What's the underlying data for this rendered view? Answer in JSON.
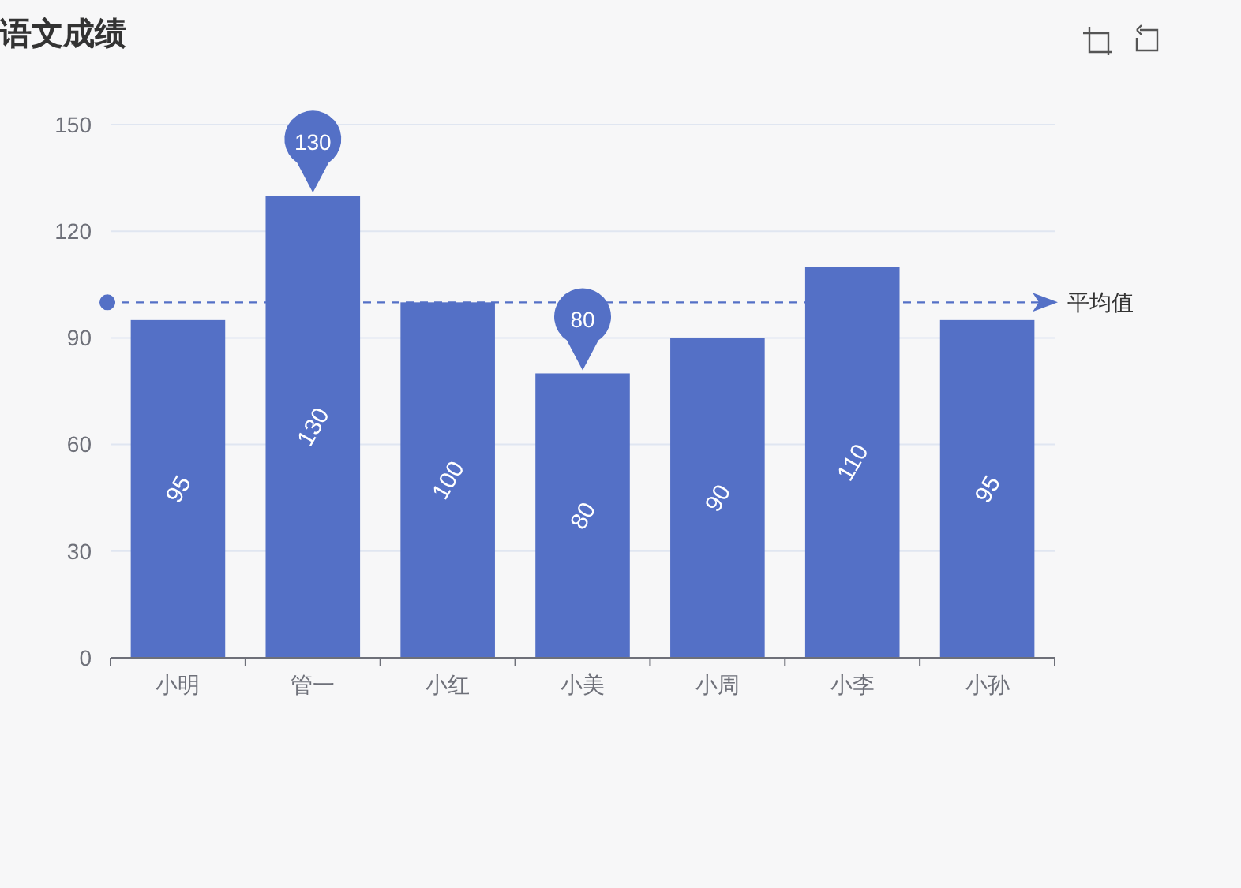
{
  "chart_data": {
    "type": "bar",
    "title": "语文成绩",
    "categories": [
      "小明",
      "管一",
      "小红",
      "小美",
      "小周",
      "小李",
      "小孙"
    ],
    "values": [
      95,
      130,
      100,
      80,
      90,
      110,
      95
    ],
    "color": "#5470c6",
    "ylim": [
      0,
      150
    ],
    "yticks": [
      0,
      30,
      60,
      90,
      120,
      150
    ],
    "grid": "y",
    "data_labels": true,
    "annotations": [
      {
        "text": "130",
        "x": "管一",
        "y": 130
      },
      {
        "text": "80",
        "x": "小美",
        "y": 80
      }
    ],
    "ref_lines": [
      {
        "axis": "y",
        "value": 100,
        "label": "平均值",
        "color": "#5470c6",
        "line_style": "dashed"
      }
    ]
  }
}
